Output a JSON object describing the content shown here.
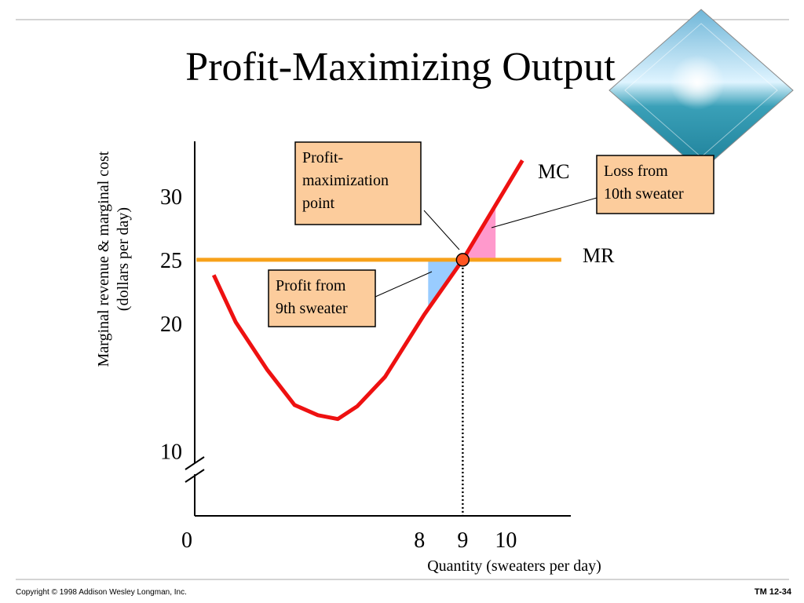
{
  "title": "Profit-Maximizing Output",
  "footer": {
    "copyright": "Copyright © 1998 Addison Wesley Longman, Inc.",
    "slide_id": "TM 12-34"
  },
  "chart_data": {
    "type": "line",
    "x_label": "Quantity (sweaters per day)",
    "y_label": [
      "Marginal revenue & marginal cost",
      "(dollars per day)"
    ],
    "xlim": [
      2.8,
      11.5
    ],
    "xticks": [
      8,
      9,
      10
    ],
    "origin_label": "0",
    "ylim": [
      4.9,
      34.3
    ],
    "yticks": [
      10,
      20,
      25,
      30
    ],
    "series": [
      {
        "name": "MC",
        "color": "#ee1111",
        "x": [
          3.24,
          3.75,
          4.47,
          5.11,
          5.65,
          6.11,
          6.56,
          7.2,
          8.11,
          9,
          10.38
        ],
        "values": [
          23.8,
          20.1,
          16.4,
          13.6,
          12.8,
          12.5,
          13.5,
          15.8,
          20.7,
          25,
          32.8
        ]
      },
      {
        "name": "MR",
        "color": "#f7a11a",
        "x": [
          2.84,
          11.28
        ],
        "values": [
          25,
          25
        ]
      }
    ],
    "optimum": {
      "x": 9,
      "y": 25
    },
    "areas": [
      {
        "x": [
          8.2,
          9
        ],
        "color": "#99ccff"
      },
      {
        "x": [
          9,
          9.76
        ],
        "color": "#ff99cc"
      }
    ],
    "annotations": [
      {
        "lines": [
          "Profit-",
          "maximization",
          "point"
        ]
      },
      {
        "lines": [
          "Loss from",
          "10th sweater"
        ]
      },
      {
        "lines": [
          "Profit from",
          "9th sweater"
        ]
      }
    ]
  }
}
